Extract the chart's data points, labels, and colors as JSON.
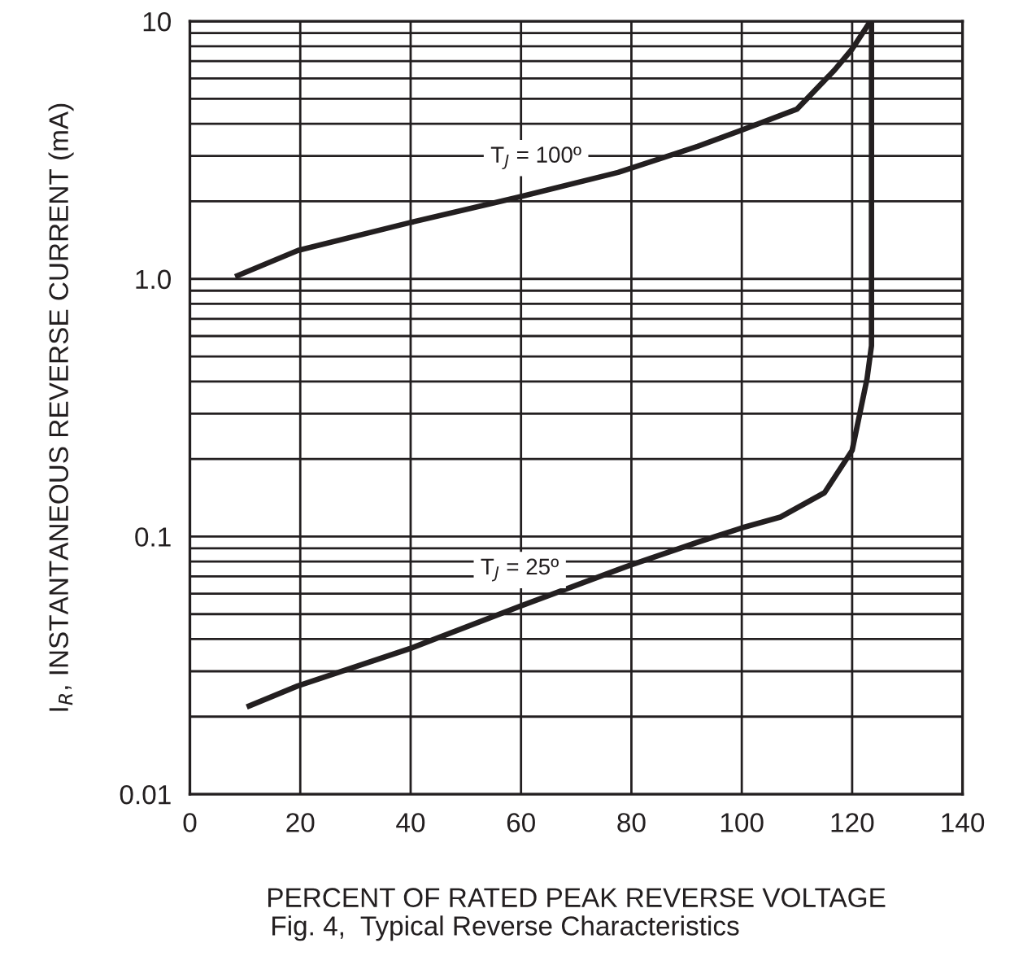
{
  "chart_data": {
    "type": "line",
    "xlabel": "PERCENT OF RATED PEAK REVERSE VOLTAGE",
    "ylabel": "I$_{R}$, INSTANTANEOUS REVERSE CURRENT (mA)",
    "annotations": [
      "Fig. 4,  Typical Reverse Characteristics"
    ],
    "series": [
      {
        "name": "T$_{J}$ = 100º",
        "color": "#231f20",
        "x": [
          8.2,
          19.6,
          39.7,
          59.7,
          77.6,
          92,
          100,
          110,
          116.8,
          120,
          123.3
        ],
        "values": [
          1.02,
          1.29,
          1.65,
          2.08,
          2.59,
          3.27,
          3.78,
          4.56,
          6.46,
          7.8,
          10
        ]
      },
      {
        "name": "T$_{J}$ = 25º",
        "color": "#231f20",
        "x": [
          10.3,
          19.5,
          39.8,
          59.9,
          79.9,
          92.3,
          100,
          107,
          115,
          120,
          122.7,
          123.5,
          123.5
        ],
        "values": [
          0.0218,
          0.0263,
          0.0367,
          0.0537,
          0.0776,
          0.0955,
          0.108,
          0.119,
          0.148,
          0.216,
          0.41,
          0.55,
          10
        ]
      }
    ],
    "xlim": [
      0,
      140
    ],
    "xticks": [
      0,
      20,
      40,
      60,
      80,
      100,
      120,
      140
    ],
    "ylim": [
      0.01,
      10
    ],
    "yticks": [
      0.01,
      0.1,
      {
        "value": 1,
        "label": "1.0"
      },
      10
    ],
    "log": "y",
    "grid": true,
    "marker": "none",
    "line_style": "solid",
    "legend": false
  }
}
